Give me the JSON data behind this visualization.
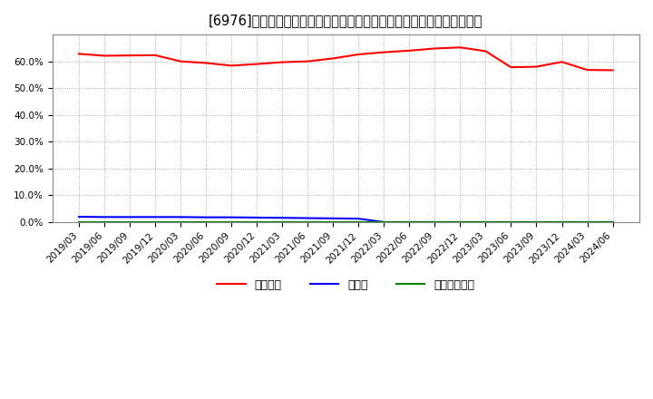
{
  "title": "[6976]　自己資本、のれん、繰延税金資産の総資産に対する比率の推移",
  "x_labels": [
    "2019/03",
    "2019/06",
    "2019/09",
    "2019/12",
    "2020/03",
    "2020/06",
    "2020/09",
    "2020/12",
    "2021/03",
    "2021/06",
    "2021/09",
    "2021/12",
    "2022/03",
    "2022/06",
    "2022/09",
    "2022/12",
    "2023/03",
    "2023/06",
    "2023/09",
    "2023/12",
    "2024/03",
    "2024/06"
  ],
  "equity_ratio": [
    0.628,
    0.621,
    0.622,
    0.623,
    0.6,
    0.594,
    0.584,
    0.59,
    0.597,
    0.6,
    0.611,
    0.626,
    0.634,
    0.64,
    0.648,
    0.652,
    0.638,
    0.578,
    0.58,
    0.598,
    0.568,
    0.567
  ],
  "goodwill_ratio": [
    0.02,
    0.019,
    0.019,
    0.019,
    0.019,
    0.018,
    0.018,
    0.017,
    0.016,
    0.015,
    0.014,
    0.013,
    0.0,
    0.0,
    0.0,
    0.0,
    0.0,
    0.0,
    0.0,
    0.0,
    0.0,
    0.0
  ],
  "deferred_tax_ratio": [
    0.0,
    0.0,
    0.0,
    0.0,
    0.0,
    0.0,
    0.0,
    0.0,
    0.0,
    0.0,
    0.0,
    0.0,
    0.0,
    0.0,
    0.0,
    0.0,
    0.0,
    0.0,
    0.0,
    0.0,
    0.0,
    0.0
  ],
  "equity_color": "#ff0000",
  "goodwill_color": "#0000ff",
  "deferred_tax_color": "#008000",
  "background_color": "#ffffff",
  "plot_bg_color": "#ffffff",
  "grid_color": "#999999",
  "ylim": [
    0.0,
    0.7
  ],
  "yticks": [
    0.0,
    0.1,
    0.2,
    0.3,
    0.4,
    0.5,
    0.6
  ],
  "legend_labels": [
    "自己資本",
    "のれん",
    "繰延税金資産"
  ],
  "title_fontsize": 10.5,
  "tick_fontsize": 7.5,
  "legend_fontsize": 9
}
